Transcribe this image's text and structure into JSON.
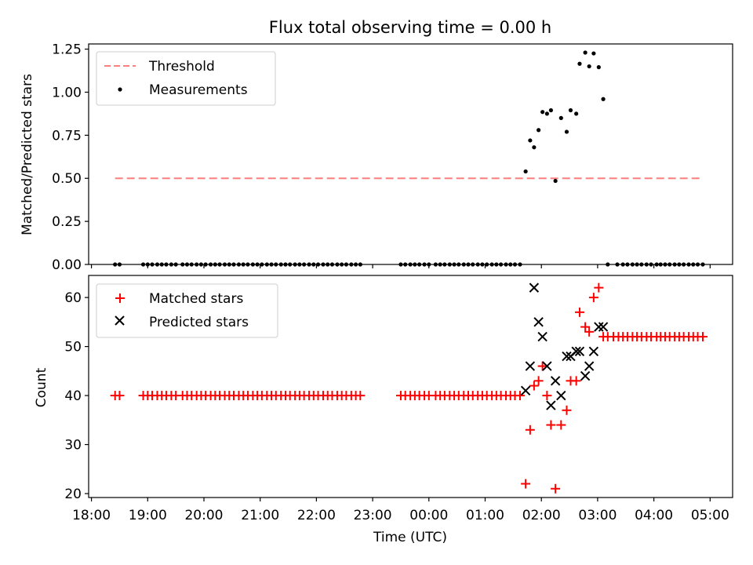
{
  "chart_data": [
    {
      "type": "scatter",
      "title": "Flux total observing time = 0.00 h",
      "xlabel": "",
      "ylabel": "Matched/Predicted stars",
      "ylim": [
        0,
        1.28
      ],
      "yticks": [
        "0.00",
        "0.25",
        "0.50",
        "0.75",
        "1.00",
        "1.25"
      ],
      "ytick_values": [
        0,
        0.25,
        0.5,
        0.75,
        1.0,
        1.25
      ],
      "legend_position": "top-left",
      "threshold": {
        "name": "Threshold",
        "value": 0.5,
        "color": "#ff7f7f",
        "style": "dashed"
      },
      "series": [
        {
          "name": "Measurements",
          "color": "#000000",
          "marker": "dot",
          "points": [
            [
              18.42,
              0
            ],
            [
              18.5,
              0
            ],
            [
              18.92,
              0
            ],
            [
              19.0,
              0
            ],
            [
              19.08,
              0
            ],
            [
              19.17,
              0
            ],
            [
              19.25,
              0
            ],
            [
              19.33,
              0
            ],
            [
              19.42,
              0
            ],
            [
              19.5,
              0
            ],
            [
              19.62,
              0
            ],
            [
              19.7,
              0
            ],
            [
              19.78,
              0
            ],
            [
              19.87,
              0
            ],
            [
              19.95,
              0
            ],
            [
              20.03,
              0
            ],
            [
              20.12,
              0
            ],
            [
              20.2,
              0
            ],
            [
              20.28,
              0
            ],
            [
              20.37,
              0
            ],
            [
              20.45,
              0
            ],
            [
              20.53,
              0
            ],
            [
              20.62,
              0
            ],
            [
              20.7,
              0
            ],
            [
              20.78,
              0
            ],
            [
              20.87,
              0
            ],
            [
              20.95,
              0
            ],
            [
              21.03,
              0
            ],
            [
              21.12,
              0
            ],
            [
              21.2,
              0
            ],
            [
              21.28,
              0
            ],
            [
              21.37,
              0
            ],
            [
              21.45,
              0
            ],
            [
              21.53,
              0
            ],
            [
              21.62,
              0
            ],
            [
              21.7,
              0
            ],
            [
              21.78,
              0
            ],
            [
              21.87,
              0
            ],
            [
              21.95,
              0
            ],
            [
              22.03,
              0
            ],
            [
              22.12,
              0
            ],
            [
              22.2,
              0
            ],
            [
              22.28,
              0
            ],
            [
              22.37,
              0
            ],
            [
              22.45,
              0
            ],
            [
              22.53,
              0
            ],
            [
              22.62,
              0
            ],
            [
              22.7,
              0
            ],
            [
              22.78,
              0
            ],
            [
              23.5,
              0
            ],
            [
              23.58,
              0
            ],
            [
              23.67,
              0
            ],
            [
              23.75,
              0
            ],
            [
              23.83,
              0
            ],
            [
              23.92,
              0
            ],
            [
              24.0,
              0
            ],
            [
              24.12,
              0
            ],
            [
              24.2,
              0
            ],
            [
              24.28,
              0
            ],
            [
              24.37,
              0
            ],
            [
              24.45,
              0
            ],
            [
              24.53,
              0
            ],
            [
              24.62,
              0
            ],
            [
              24.7,
              0
            ],
            [
              24.78,
              0
            ],
            [
              24.87,
              0
            ],
            [
              24.95,
              0
            ],
            [
              25.03,
              0
            ],
            [
              25.12,
              0
            ],
            [
              25.2,
              0
            ],
            [
              25.28,
              0
            ],
            [
              25.37,
              0
            ],
            [
              25.45,
              0
            ],
            [
              25.53,
              0
            ],
            [
              25.62,
              0
            ],
            [
              25.72,
              0.54
            ],
            [
              25.8,
              0.72
            ],
            [
              25.87,
              0.68
            ],
            [
              25.95,
              0.78
            ],
            [
              26.02,
              0.885
            ],
            [
              26.1,
              0.875
            ],
            [
              26.17,
              0.895
            ],
            [
              26.25,
              0.485
            ],
            [
              26.35,
              0.85
            ],
            [
              26.45,
              0.77
            ],
            [
              26.52,
              0.895
            ],
            [
              26.62,
              0.875
            ],
            [
              26.68,
              1.165
            ],
            [
              26.78,
              1.23
            ],
            [
              26.85,
              1.15
            ],
            [
              26.93,
              1.225
            ],
            [
              27.02,
              1.145
            ],
            [
              27.1,
              0.96
            ],
            [
              27.18,
              0
            ],
            [
              27.35,
              0
            ],
            [
              27.45,
              0
            ],
            [
              27.53,
              0
            ],
            [
              27.62,
              0
            ],
            [
              27.7,
              0
            ],
            [
              27.78,
              0
            ],
            [
              27.87,
              0
            ],
            [
              27.95,
              0
            ],
            [
              28.05,
              0
            ],
            [
              28.12,
              0
            ],
            [
              28.2,
              0
            ],
            [
              28.28,
              0
            ],
            [
              28.37,
              0
            ],
            [
              28.45,
              0
            ],
            [
              28.53,
              0
            ],
            [
              28.62,
              0
            ],
            [
              28.7,
              0
            ],
            [
              28.78,
              0
            ],
            [
              28.87,
              0
            ]
          ]
        }
      ]
    },
    {
      "type": "scatter",
      "title": "",
      "xlabel": "Time (UTC)",
      "ylabel": "Count",
      "ylim": [
        19.2,
        64.5
      ],
      "yticks": [
        "20",
        "30",
        "40",
        "50",
        "60"
      ],
      "ytick_values": [
        20,
        30,
        40,
        50,
        60
      ],
      "xlim": [
        17.95,
        29.4
      ],
      "xticks": [
        "18:00",
        "19:00",
        "20:00",
        "21:00",
        "22:00",
        "23:00",
        "00:00",
        "01:00",
        "02:00",
        "03:00",
        "04:00",
        "05:00"
      ],
      "xtick_values": [
        18,
        19,
        20,
        21,
        22,
        23,
        24,
        25,
        26,
        27,
        28,
        29
      ],
      "legend_position": "top-left",
      "series": [
        {
          "name": "Matched stars",
          "color": "#ff0000",
          "marker": "plus",
          "points": [
            [
              18.42,
              40
            ],
            [
              18.5,
              40
            ],
            [
              18.92,
              40
            ],
            [
              19.0,
              40
            ],
            [
              19.08,
              40
            ],
            [
              19.17,
              40
            ],
            [
              19.25,
              40
            ],
            [
              19.33,
              40
            ],
            [
              19.42,
              40
            ],
            [
              19.5,
              40
            ],
            [
              19.62,
              40
            ],
            [
              19.7,
              40
            ],
            [
              19.78,
              40
            ],
            [
              19.87,
              40
            ],
            [
              19.95,
              40
            ],
            [
              20.03,
              40
            ],
            [
              20.12,
              40
            ],
            [
              20.2,
              40
            ],
            [
              20.28,
              40
            ],
            [
              20.37,
              40
            ],
            [
              20.45,
              40
            ],
            [
              20.53,
              40
            ],
            [
              20.62,
              40
            ],
            [
              20.7,
              40
            ],
            [
              20.78,
              40
            ],
            [
              20.87,
              40
            ],
            [
              20.95,
              40
            ],
            [
              21.03,
              40
            ],
            [
              21.12,
              40
            ],
            [
              21.2,
              40
            ],
            [
              21.28,
              40
            ],
            [
              21.37,
              40
            ],
            [
              21.45,
              40
            ],
            [
              21.53,
              40
            ],
            [
              21.62,
              40
            ],
            [
              21.7,
              40
            ],
            [
              21.78,
              40
            ],
            [
              21.87,
              40
            ],
            [
              21.95,
              40
            ],
            [
              22.03,
              40
            ],
            [
              22.12,
              40
            ],
            [
              22.2,
              40
            ],
            [
              22.28,
              40
            ],
            [
              22.37,
              40
            ],
            [
              22.45,
              40
            ],
            [
              22.53,
              40
            ],
            [
              22.62,
              40
            ],
            [
              22.7,
              40
            ],
            [
              22.78,
              40
            ],
            [
              23.5,
              40
            ],
            [
              23.58,
              40
            ],
            [
              23.67,
              40
            ],
            [
              23.75,
              40
            ],
            [
              23.83,
              40
            ],
            [
              23.92,
              40
            ],
            [
              24.0,
              40
            ],
            [
              24.12,
              40
            ],
            [
              24.2,
              40
            ],
            [
              24.28,
              40
            ],
            [
              24.37,
              40
            ],
            [
              24.45,
              40
            ],
            [
              24.53,
              40
            ],
            [
              24.62,
              40
            ],
            [
              24.7,
              40
            ],
            [
              24.78,
              40
            ],
            [
              24.87,
              40
            ],
            [
              24.95,
              40
            ],
            [
              25.03,
              40
            ],
            [
              25.12,
              40
            ],
            [
              25.2,
              40
            ],
            [
              25.28,
              40
            ],
            [
              25.37,
              40
            ],
            [
              25.45,
              40
            ],
            [
              25.53,
              40
            ],
            [
              25.62,
              40
            ],
            [
              25.72,
              22
            ],
            [
              25.8,
              33
            ],
            [
              25.87,
              42
            ],
            [
              25.95,
              43
            ],
            [
              26.02,
              46
            ],
            [
              26.1,
              40
            ],
            [
              26.17,
              34
            ],
            [
              26.25,
              21
            ],
            [
              26.35,
              34
            ],
            [
              26.45,
              37
            ],
            [
              26.52,
              43
            ],
            [
              26.62,
              43
            ],
            [
              26.68,
              57
            ],
            [
              26.78,
              54
            ],
            [
              26.85,
              53
            ],
            [
              26.93,
              60
            ],
            [
              27.02,
              62
            ],
            [
              27.1,
              52
            ],
            [
              27.18,
              52
            ],
            [
              27.28,
              52
            ],
            [
              27.37,
              52
            ],
            [
              27.45,
              52
            ],
            [
              27.53,
              52
            ],
            [
              27.62,
              52
            ],
            [
              27.7,
              52
            ],
            [
              27.78,
              52
            ],
            [
              27.87,
              52
            ],
            [
              27.95,
              52
            ],
            [
              28.05,
              52
            ],
            [
              28.12,
              52
            ],
            [
              28.2,
              52
            ],
            [
              28.28,
              52
            ],
            [
              28.37,
              52
            ],
            [
              28.45,
              52
            ],
            [
              28.53,
              52
            ],
            [
              28.62,
              52
            ],
            [
              28.7,
              52
            ],
            [
              28.78,
              52
            ],
            [
              28.87,
              52
            ]
          ]
        },
        {
          "name": "Predicted stars",
          "color": "#000000",
          "marker": "x",
          "points": [
            [
              25.72,
              41
            ],
            [
              25.8,
              46
            ],
            [
              25.87,
              62
            ],
            [
              25.95,
              55
            ],
            [
              26.02,
              52
            ],
            [
              26.1,
              46
            ],
            [
              26.17,
              38
            ],
            [
              26.25,
              43
            ],
            [
              26.35,
              40
            ],
            [
              26.45,
              48
            ],
            [
              26.52,
              48
            ],
            [
              26.62,
              49
            ],
            [
              26.68,
              49
            ],
            [
              26.78,
              44
            ],
            [
              26.85,
              46
            ],
            [
              26.93,
              49
            ],
            [
              27.02,
              54
            ],
            [
              27.1,
              54
            ]
          ]
        }
      ]
    }
  ]
}
